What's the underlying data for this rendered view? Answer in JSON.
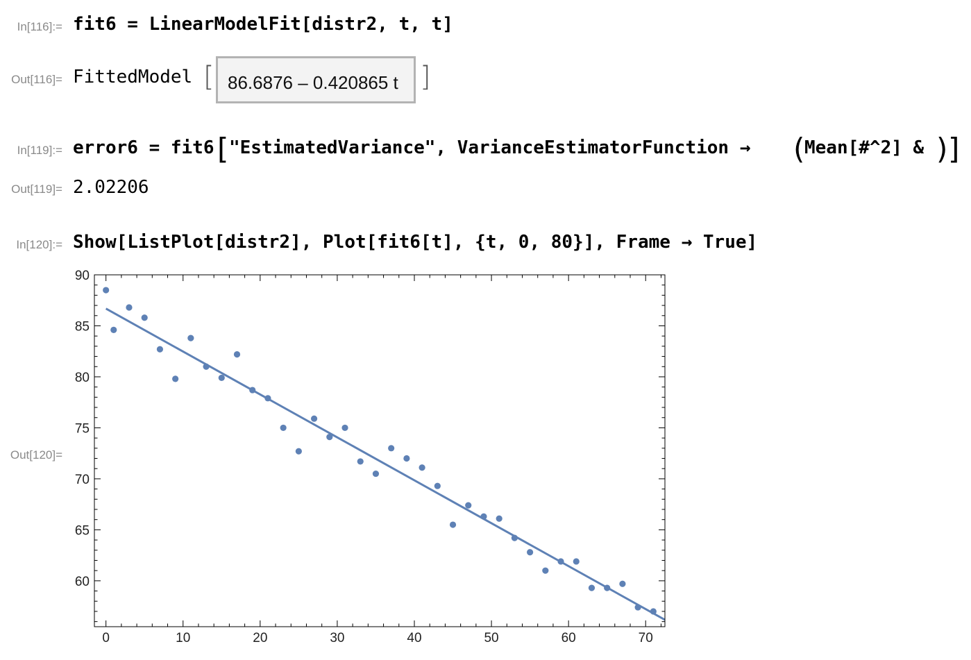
{
  "cells": {
    "in116": {
      "label": "In[116]:=",
      "code": "fit6 = LinearModelFit[distr2, t, t]"
    },
    "out116": {
      "label": "Out[116]=",
      "head": "FittedModel",
      "formula": "86.6876 – 0.420865 t"
    },
    "in119": {
      "label": "In[119]:=",
      "code_a": "error6 = fit6",
      "code_b": "\"EstimatedVariance\", VarianceEstimatorFunction → ",
      "code_c": "Mean[#^2] &"
    },
    "out119": {
      "label": "Out[119]=",
      "value": "2.02206"
    },
    "in120": {
      "label": "In[120]:=",
      "code": "Show[ListPlot[distr2], Plot[fit6[t], {t, 0, 80}], Frame → True]"
    },
    "out120": {
      "label": "Out[120]="
    }
  },
  "colors": {
    "series": "#5e81b5",
    "frame": "#000000",
    "label": "#8a8a8a"
  },
  "chart_data": {
    "type": "scatter",
    "title": "",
    "xlabel": "",
    "ylabel": "",
    "xlim": [
      -1.5,
      72.5
    ],
    "ylim": [
      55.5,
      90
    ],
    "grid": false,
    "frame": true,
    "x_ticks": [
      0,
      10,
      20,
      30,
      40,
      50,
      60,
      70
    ],
    "y_ticks": [
      60,
      65,
      70,
      75,
      80,
      85,
      90
    ],
    "x_tick_labels": [
      "0",
      "10",
      "20",
      "30",
      "40",
      "50",
      "60",
      "70"
    ],
    "y_tick_labels": [
      "60",
      "65",
      "70",
      "75",
      "80",
      "85",
      "90"
    ],
    "series": [
      {
        "kind": "points",
        "x": [
          0,
          1,
          3,
          5,
          7,
          9,
          11,
          13,
          15,
          17,
          19,
          21,
          23,
          25,
          27,
          29,
          31,
          33,
          35,
          37,
          39,
          41,
          43,
          45,
          47,
          49,
          51,
          53,
          55,
          57,
          59,
          61,
          63,
          65,
          67,
          69,
          71
        ],
        "y": [
          88.5,
          84.6,
          86.8,
          85.8,
          82.7,
          79.8,
          83.8,
          81.0,
          79.9,
          82.2,
          78.7,
          77.9,
          75.0,
          72.7,
          75.9,
          74.1,
          75.0,
          71.7,
          70.5,
          73.0,
          72.0,
          71.1,
          69.3,
          65.5,
          67.4,
          66.3,
          66.1,
          64.2,
          62.8,
          61.0,
          61.9,
          61.9,
          59.3,
          59.3,
          59.7,
          57.4,
          57.0
        ]
      },
      {
        "kind": "line",
        "intercept": 86.6876,
        "slope": -0.420865,
        "domain": [
          0,
          80
        ]
      }
    ]
  }
}
